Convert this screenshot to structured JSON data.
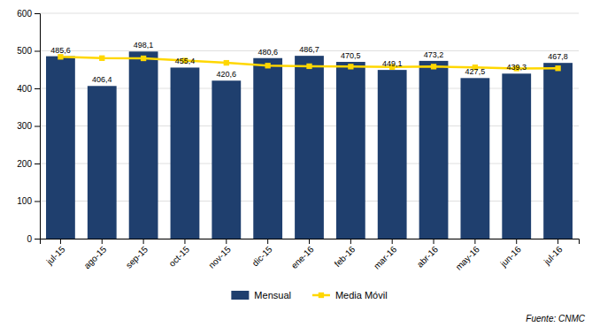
{
  "chart_data": {
    "type": "bar",
    "categories": [
      "jul-15",
      "ago-15",
      "sep-15",
      "oct-15",
      "nov-15",
      "dic-15",
      "ene-16",
      "feb-16",
      "mar-16",
      "abr-16",
      "may-16",
      "jun-16",
      "jul-16"
    ],
    "series": [
      {
        "name": "Mensual",
        "type": "bar",
        "color": "#1F3F6E",
        "data_labels": true,
        "values": [
          485.6,
          406.4,
          498.1,
          455.4,
          420.6,
          480.6,
          486.7,
          470.5,
          449.1,
          473.2,
          427.5,
          439.3,
          467.8
        ],
        "value_labels": [
          "485,6",
          "406,4",
          "498,1",
          "455,4",
          "420,6",
          "480,6",
          "486,7",
          "470,5",
          "449,1",
          "473,2",
          "427,5",
          "439,3",
          "467,8"
        ]
      },
      {
        "name": "Media Móvil",
        "type": "line",
        "color": "#FFD700",
        "marker": "square",
        "values": [
          484.0,
          480.5,
          480.0,
          474.0,
          468.0,
          460.5,
          459.0,
          458.0,
          457.0,
          458.0,
          456.0,
          453.0,
          453.5
        ]
      }
    ],
    "ylim": [
      0,
      600
    ],
    "yticks": [
      0,
      100,
      200,
      300,
      400,
      500,
      600
    ],
    "grid": true,
    "legend": "bottom",
    "annotations": [
      "Fuente: CNMC"
    ]
  }
}
